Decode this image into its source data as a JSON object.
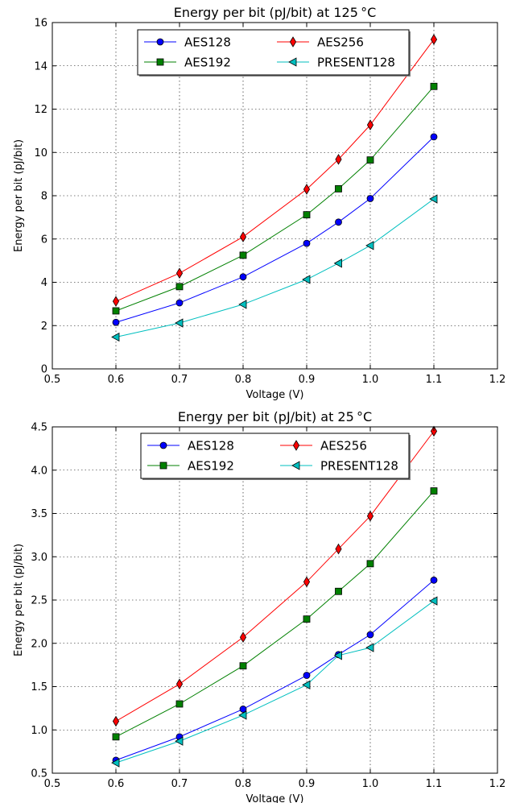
{
  "chart_data": [
    {
      "type": "line",
      "title": "Energy per bit (pJ/bit) at 125 °C",
      "xlabel": "Voltage (V)",
      "ylabel": "Energy per bit (pJ/bit)",
      "xlim": [
        0.5,
        1.2
      ],
      "ylim": [
        0,
        16
      ],
      "xticks": [
        "0.5",
        "0.6",
        "0.7",
        "0.8",
        "0.9",
        "1.0",
        "1.1",
        "1.2"
      ],
      "yticks": [
        "0",
        "2",
        "4",
        "6",
        "8",
        "10",
        "12",
        "14",
        "16"
      ],
      "grid": true,
      "legend": "top-center",
      "x": [
        0.6,
        0.7,
        0.8,
        0.9,
        0.95,
        1.0,
        1.1
      ],
      "series": [
        {
          "name": "AES128",
          "color": "#0000ff",
          "marker": "circle",
          "values": [
            2.15,
            3.05,
            4.25,
            5.8,
            6.78,
            7.87,
            10.72
          ]
        },
        {
          "name": "AES192",
          "color": "#008000",
          "marker": "square",
          "values": [
            2.68,
            3.8,
            5.25,
            7.12,
            8.32,
            9.65,
            13.05
          ]
        },
        {
          "name": "AES256",
          "color": "#ff0000",
          "marker": "diamond",
          "values": [
            3.12,
            4.42,
            6.1,
            8.3,
            9.68,
            11.27,
            15.22
          ]
        },
        {
          "name": "PRESENT128",
          "color": "#00bfbf",
          "marker": "triangle-left",
          "values": [
            1.47,
            2.12,
            2.98,
            4.13,
            4.88,
            5.7,
            7.85
          ]
        }
      ]
    },
    {
      "type": "line",
      "title": "Energy per bit (pJ/bit) at 25 °C",
      "xlabel": "Voltage (V)",
      "ylabel": "Energy per bit (pJ/bit)",
      "xlim": [
        0.5,
        1.2
      ],
      "ylim": [
        0.5,
        4.5
      ],
      "xticks": [
        "0.5",
        "0.6",
        "0.7",
        "0.8",
        "0.9",
        "1.0",
        "1.1",
        "1.2"
      ],
      "yticks": [
        "0.5",
        "1.0",
        "1.5",
        "2.0",
        "2.5",
        "3.0",
        "3.5",
        "4.0",
        "4.5"
      ],
      "grid": true,
      "legend": "top-center",
      "x": [
        0.6,
        0.7,
        0.8,
        0.9,
        0.95,
        1.0,
        1.1
      ],
      "series": [
        {
          "name": "AES128",
          "color": "#0000ff",
          "marker": "circle",
          "values": [
            0.65,
            0.92,
            1.24,
            1.63,
            1.87,
            2.1,
            2.73
          ]
        },
        {
          "name": "AES192",
          "color": "#008000",
          "marker": "square",
          "values": [
            0.92,
            1.3,
            1.74,
            2.28,
            2.6,
            2.92,
            3.76
          ]
        },
        {
          "name": "AES256",
          "color": "#ff0000",
          "marker": "diamond",
          "values": [
            1.1,
            1.53,
            2.07,
            2.71,
            3.09,
            3.47,
            4.45
          ]
        },
        {
          "name": "PRESENT128",
          "color": "#00bfbf",
          "marker": "triangle-left",
          "values": [
            0.62,
            0.87,
            1.17,
            1.52,
            1.86,
            1.95,
            2.49
          ]
        }
      ]
    }
  ]
}
